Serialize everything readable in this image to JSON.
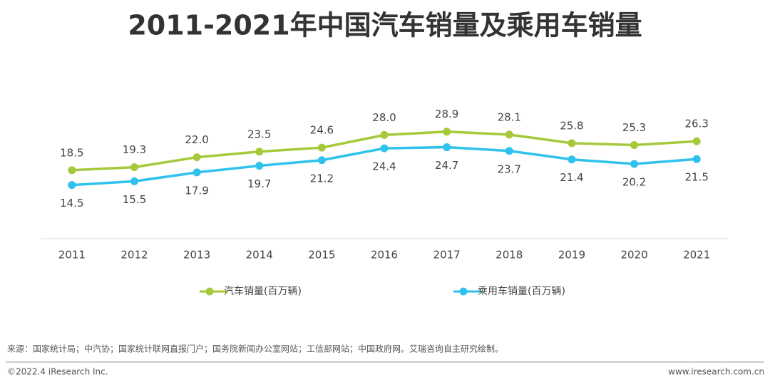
{
  "chart_data": {
    "type": "line",
    "title": "2011-2021年中国汽车销量及乘用车销量",
    "categories": [
      "2011",
      "2012",
      "2013",
      "2014",
      "2015",
      "2016",
      "2017",
      "2018",
      "2019",
      "2020",
      "2021"
    ],
    "series": [
      {
        "name": "汽车销量(百万辆)",
        "color": "#a5c93a",
        "values": [
          18.5,
          19.3,
          22.0,
          23.5,
          24.6,
          28.0,
          28.9,
          28.1,
          25.8,
          25.3,
          26.3
        ],
        "value_labels": [
          "18.5",
          "19.3",
          "22.0",
          "23.5",
          "24.6",
          "28.0",
          "28.9",
          "28.1",
          "25.8",
          "25.3",
          "26.3"
        ]
      },
      {
        "name": "乘用车销量(百万辆)",
        "color": "#2ec2ec",
        "values": [
          14.5,
          15.5,
          17.9,
          19.7,
          21.2,
          24.4,
          24.7,
          23.7,
          21.4,
          20.2,
          21.5
        ],
        "value_labels": [
          "14.5",
          "15.5",
          "17.9",
          "19.7",
          "21.2",
          "24.4",
          "24.7",
          "23.7",
          "21.4",
          "20.2",
          "21.5"
        ]
      }
    ],
    "ylim": [
      0,
      45
    ],
    "grid": false
  },
  "footer": {
    "source": "来源：国家统计局；中汽协；国家统计联网直报门户；国务院新闻办公室网站；工信部网站；中国政府网。艾瑞咨询自主研究绘制。",
    "copyright": "©2022.4 iResearch Inc.",
    "website": "www.iresearch.com.cn"
  }
}
